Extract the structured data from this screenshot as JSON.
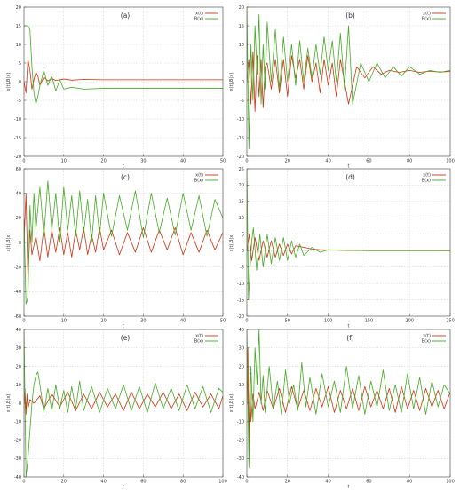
{
  "colors": {
    "x_series": "#cc3311",
    "B_series": "#44aa22",
    "grid": "#cfcfcf",
    "frame": "#444444"
  },
  "chart_data": [
    {
      "type": "line",
      "panel_label": "(a)",
      "xlabel": "t",
      "ylabel": "x(t),B(x)",
      "xlim": [
        0,
        50
      ],
      "ylim": [
        -20,
        20
      ],
      "xticks": [
        0,
        10,
        20,
        30,
        40,
        50
      ],
      "yticks": [
        -20,
        -15,
        -10,
        -5,
        0,
        5,
        10,
        15,
        20
      ],
      "grid": true,
      "legend": "top-right",
      "legend_entries": [
        "x(t)",
        "B(x)"
      ],
      "series": [
        {
          "name": "x(t)",
          "x": [
            0,
            0.5,
            1,
            1.5,
            2,
            2.5,
            3,
            3.5,
            4,
            5,
            6,
            7,
            8,
            10,
            12,
            15,
            20,
            30,
            50
          ],
          "y": [
            0,
            -3,
            6,
            3,
            -2,
            0.5,
            2.5,
            1.5,
            -1,
            1.2,
            0.2,
            0.8,
            0.3,
            0.7,
            0.4,
            0.6,
            0.5,
            0.5,
            0.5
          ]
        },
        {
          "name": "B(x)",
          "x": [
            0,
            1,
            1.5,
            2,
            2.5,
            3,
            3.5,
            4,
            5,
            6,
            7,
            8,
            9,
            10,
            12,
            15,
            20,
            30,
            50
          ],
          "y": [
            15,
            15,
            14,
            4,
            -3,
            -6,
            -4,
            -1,
            3,
            -1,
            1.5,
            -2.5,
            0.5,
            -2,
            -1.5,
            -2,
            -1.8,
            -1.8,
            -1.8
          ]
        }
      ]
    },
    {
      "type": "line",
      "panel_label": "(b)",
      "xlabel": "t",
      "ylabel": "x(t),B(x)",
      "xlim": [
        0,
        100
      ],
      "ylim": [
        -20,
        20
      ],
      "xticks": [
        0,
        20,
        40,
        60,
        80,
        100
      ],
      "yticks": [
        -20,
        -15,
        -10,
        -5,
        0,
        5,
        10,
        15,
        20
      ],
      "grid": true,
      "legend": "top-right",
      "legend_entries": [
        "x(t)",
        "B(x)"
      ],
      "series": [
        {
          "name": "x(t)",
          "x": [
            0,
            1,
            2,
            3,
            4,
            5,
            6,
            7,
            8,
            9,
            10,
            12,
            14,
            16,
            18,
            20,
            22,
            24,
            26,
            28,
            30,
            32,
            34,
            36,
            38,
            40,
            42,
            44,
            46,
            48,
            50,
            54,
            58,
            62,
            66,
            70,
            75,
            80,
            85,
            90,
            95,
            100
          ],
          "y": [
            0,
            6,
            -6,
            8,
            -8,
            7,
            -4,
            6,
            -7,
            4,
            5,
            -2,
            6,
            -3,
            6,
            -4,
            7,
            1,
            6,
            -2,
            7,
            0,
            5,
            -3,
            6,
            -1,
            5,
            -4,
            6,
            0,
            -6,
            4,
            1,
            4,
            2,
            3,
            2.5,
            3,
            2.5,
            2.8,
            2.6,
            2.7
          ]
        },
        {
          "name": "B(x)",
          "x": [
            0,
            1,
            2,
            3,
            4,
            5,
            6,
            7,
            8,
            9,
            10,
            12,
            14,
            16,
            18,
            20,
            22,
            24,
            26,
            28,
            30,
            32,
            34,
            36,
            38,
            40,
            42,
            44,
            46,
            48,
            50,
            52,
            56,
            60,
            64,
            68,
            72,
            76,
            80,
            85,
            90,
            95,
            100
          ],
          "y": [
            20,
            -18,
            10,
            -5,
            15,
            2,
            18,
            -6,
            10,
            -2,
            16,
            0,
            14,
            -2,
            12,
            0,
            10,
            -1,
            11,
            0,
            9,
            1,
            10,
            2,
            12,
            3,
            11,
            0,
            13,
            -2,
            15,
            -6,
            5,
            0,
            5,
            1,
            4,
            1.5,
            4,
            2,
            3,
            2.5,
            3
          ]
        }
      ]
    },
    {
      "type": "line",
      "panel_label": "(c)",
      "xlabel": "t",
      "ylabel": "x(t),B(x)",
      "xlim": [
        0,
        50
      ],
      "ylim": [
        -60,
        60
      ],
      "xticks": [
        0,
        10,
        20,
        30,
        40,
        50
      ],
      "yticks": [
        -60,
        -40,
        -20,
        0,
        20,
        40,
        60
      ],
      "grid": true,
      "legend": "top-right",
      "legend_entries": [
        "x(t)",
        "B(x)"
      ],
      "series": [
        {
          "name": "x(t)",
          "x": [
            0,
            0.5,
            1,
            1.5,
            2,
            3,
            4,
            5,
            6,
            7,
            8,
            9,
            10,
            11,
            12,
            13,
            14,
            15,
            16,
            17,
            18,
            19,
            20,
            22,
            24,
            26,
            28,
            30,
            32,
            34,
            36,
            38,
            40,
            42,
            44,
            46,
            48,
            50
          ],
          "y": [
            0,
            40,
            -30,
            10,
            -10,
            5,
            -15,
            12,
            -12,
            10,
            -8,
            12,
            -10,
            8,
            -12,
            10,
            -6,
            12,
            -10,
            6,
            -8,
            12,
            -6,
            10,
            -10,
            8,
            -8,
            12,
            -8,
            10,
            -6,
            12,
            -10,
            8,
            -8,
            10,
            -6,
            8
          ]
        },
        {
          "name": "B(x)",
          "x": [
            0,
            0.5,
            1,
            1.5,
            2,
            2.5,
            3,
            4,
            5,
            6,
            7,
            8,
            9,
            10,
            11,
            12,
            13,
            14,
            15,
            16,
            17,
            18,
            19,
            20,
            22,
            24,
            26,
            28,
            30,
            32,
            34,
            36,
            38,
            40,
            42,
            44,
            46,
            48,
            50
          ],
          "y": [
            20,
            -50,
            -45,
            30,
            0,
            40,
            10,
            45,
            5,
            50,
            10,
            40,
            0,
            45,
            10,
            38,
            5,
            42,
            8,
            35,
            0,
            38,
            6,
            40,
            5,
            38,
            10,
            42,
            4,
            40,
            8,
            36,
            6,
            40,
            10,
            38,
            5,
            35,
            20
          ]
        }
      ]
    },
    {
      "type": "line",
      "panel_label": "(d)",
      "xlabel": "t",
      "ylabel": "x(t),B(x)",
      "xlim": [
        0,
        250
      ],
      "ylim": [
        -20,
        25
      ],
      "xticks": [
        0,
        50,
        100,
        150,
        200,
        250
      ],
      "yticks": [
        -20,
        -15,
        -10,
        -5,
        0,
        5,
        10,
        15,
        20,
        25
      ],
      "grid": true,
      "legend": "top-right",
      "legend_entries": [
        "x(t)",
        "B(x)"
      ],
      "series": [
        {
          "name": "x(t)",
          "x": [
            0,
            3,
            6,
            10,
            15,
            20,
            25,
            30,
            35,
            40,
            45,
            50,
            55,
            60,
            70,
            80,
            90,
            100,
            120,
            150,
            200,
            250
          ],
          "y": [
            0,
            5,
            -3,
            4,
            -3,
            3,
            -2,
            3,
            -2,
            2,
            -1.5,
            2,
            -1,
            1.5,
            1,
            0.5,
            0.3,
            0.2,
            0.1,
            0,
            0,
            0
          ]
        },
        {
          "name": "B(x)",
          "x": [
            0,
            2,
            4,
            6,
            8,
            12,
            16,
            20,
            25,
            30,
            35,
            40,
            45,
            50,
            55,
            60,
            65,
            70,
            80,
            90,
            100,
            120,
            150,
            200,
            250
          ],
          "y": [
            25,
            -15,
            -5,
            3,
            7,
            -6,
            5,
            -5,
            5,
            -4,
            4,
            -3,
            4,
            -3,
            3,
            -2,
            2,
            -1.5,
            1,
            -0.5,
            0.3,
            0.1,
            0,
            0,
            0
          ]
        }
      ]
    },
    {
      "type": "line",
      "panel_label": "(e)",
      "xlabel": "t",
      "ylabel": "x(t),B(x)",
      "xlim": [
        0,
        100
      ],
      "ylim": [
        -40,
        40
      ],
      "xticks": [
        0,
        20,
        40,
        60,
        80,
        100
      ],
      "yticks": [
        -40,
        -30,
        -20,
        -10,
        0,
        10,
        20,
        30,
        40
      ],
      "grid": true,
      "legend": "top-right",
      "legend_entries": [
        "x(t)",
        "B(x)"
      ],
      "series": [
        {
          "name": "x(t)",
          "x": [
            0,
            0.5,
            1,
            1.5,
            2,
            3,
            5,
            8,
            10,
            14,
            18,
            22,
            26,
            30,
            34,
            38,
            42,
            46,
            50,
            54,
            58,
            62,
            66,
            70,
            74,
            78,
            82,
            86,
            90,
            94,
            98,
            100
          ],
          "y": [
            0,
            8,
            -6,
            5,
            -3,
            2,
            0,
            4,
            -3,
            5,
            -2,
            6,
            -4,
            5,
            -3,
            6,
            -2,
            5,
            -4,
            6,
            -3,
            5,
            -2,
            6,
            -3,
            5,
            -4,
            6,
            -2,
            5,
            -3,
            4
          ]
        },
        {
          "name": "B(x)",
          "x": [
            0,
            1,
            2,
            3,
            4,
            5,
            6,
            7,
            8,
            10,
            12,
            14,
            16,
            18,
            20,
            22,
            24,
            26,
            28,
            30,
            34,
            38,
            42,
            46,
            50,
            54,
            58,
            62,
            66,
            70,
            74,
            78,
            82,
            86,
            90,
            94,
            98,
            100
          ],
          "y": [
            40,
            -40,
            -30,
            -15,
            0,
            10,
            15,
            17,
            10,
            -5,
            8,
            -4,
            10,
            -3,
            7,
            -5,
            9,
            -3,
            12,
            -4,
            9,
            -5,
            8,
            -3,
            10,
            -4,
            9,
            -5,
            11,
            -3,
            8,
            -4,
            10,
            -3,
            9,
            -5,
            8,
            6
          ]
        }
      ]
    },
    {
      "type": "line",
      "panel_label": "(f)",
      "xlabel": "t",
      "ylabel": "x(t),B(x)",
      "xlim": [
        0,
        100
      ],
      "ylim": [
        -40,
        40
      ],
      "xticks": [
        0,
        20,
        40,
        60,
        80,
        100
      ],
      "yticks": [
        -40,
        -30,
        -20,
        -10,
        0,
        10,
        20,
        30,
        40
      ],
      "grid": true,
      "legend": "top-right",
      "legend_entries": [
        "x(t)",
        "B(x)"
      ],
      "series": [
        {
          "name": "x(t)",
          "x": [
            0,
            0.5,
            1,
            1.5,
            2,
            3,
            4,
            6,
            8,
            10,
            13,
            16,
            19,
            22,
            25,
            28,
            31,
            34,
            37,
            40,
            43,
            46,
            49,
            52,
            55,
            58,
            61,
            64,
            67,
            70,
            73,
            76,
            79,
            82,
            85,
            88,
            91,
            94,
            97,
            100
          ],
          "y": [
            0,
            30,
            -25,
            15,
            -10,
            5,
            -3,
            6,
            -4,
            7,
            -3,
            8,
            -5,
            9,
            -3,
            7,
            -4,
            8,
            -2,
            9,
            -5,
            7,
            -3,
            8,
            -4,
            9,
            -2,
            7,
            -3,
            8,
            -5,
            9,
            -3,
            7,
            -4,
            8,
            -2,
            7,
            -3,
            6
          ]
        },
        {
          "name": "B(x)",
          "x": [
            0,
            1,
            2,
            3,
            4,
            5,
            6,
            7,
            8,
            9,
            11,
            13,
            15,
            17,
            19,
            21,
            23,
            25,
            27,
            29,
            31,
            34,
            37,
            40,
            43,
            46,
            49,
            52,
            55,
            58,
            61,
            64,
            67,
            70,
            73,
            76,
            79,
            82,
            85,
            88,
            91,
            94,
            97,
            100
          ],
          "y": [
            40,
            -35,
            20,
            -10,
            30,
            10,
            40,
            0,
            15,
            -5,
            20,
            -3,
            12,
            -6,
            18,
            0,
            10,
            -4,
            22,
            -2,
            14,
            -6,
            16,
            -2,
            12,
            -5,
            20,
            -3,
            15,
            -6,
            12,
            -2,
            18,
            -4,
            10,
            -5,
            16,
            -3,
            14,
            -6,
            12,
            -2,
            10,
            5
          ]
        }
      ]
    }
  ]
}
